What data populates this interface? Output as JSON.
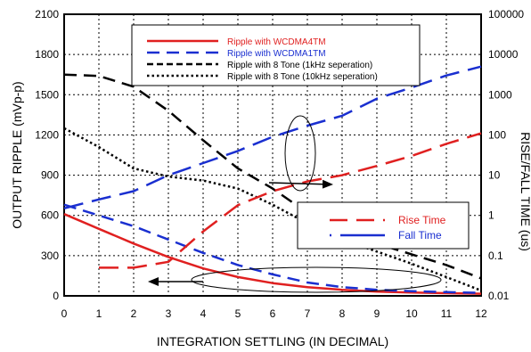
{
  "chart_data": {
    "type": "line",
    "title": "",
    "xlabel": "INTEGRATION SETTLING (IN DECIMAL)",
    "ylabel_left": "OUTPUT RIPPLE (mVp-p)",
    "ylabel_right": "RISE/FALL TIME (us)",
    "xlim": [
      0,
      12
    ],
    "ylim_left": [
      0,
      2100
    ],
    "ylim_right": [
      0.01,
      100000
    ],
    "right_scale": "log",
    "grid": true,
    "xticks": [
      "0",
      "1",
      "2",
      "3",
      "4",
      "5",
      "6",
      "7",
      "8",
      "9",
      "10",
      "11",
      "12"
    ],
    "yticks_left": [
      "0",
      "300",
      "600",
      "900",
      "1200",
      "1500",
      "1800",
      "2100"
    ],
    "yticks_right": [
      "0.01",
      "0.1",
      "1",
      "10",
      "100",
      "1000",
      "10000",
      "100000"
    ],
    "legend_left": {
      "placement": "top-center",
      "entries": [
        "Ripple with WCDMA4TM",
        "Ripple with WCDMA1TM",
        "Ripple with 8 Tone (1kHz seperation)",
        "Ripple with 8 Tone (10kHz seperation)"
      ]
    },
    "legend_right": {
      "placement": "center-right",
      "entries": [
        "Rise Time",
        "Fall Time"
      ]
    },
    "series": [
      {
        "name": "Ripple with WCDMA4TM",
        "axis": "left",
        "color": "#e02020",
        "style": "solid",
        "x": [
          0,
          1,
          2,
          3,
          4,
          5,
          6,
          7,
          8,
          9,
          10,
          11,
          12
        ],
        "y": [
          610,
          500,
          390,
          290,
          205,
          140,
          95,
          65,
          45,
          32,
          25,
          20,
          16
        ]
      },
      {
        "name": "Ripple with WCDMA1TM",
        "axis": "left",
        "color": "#1a2fd0",
        "style": "dashed",
        "x": [
          0,
          1,
          2,
          3,
          4,
          5,
          6,
          7,
          8,
          9,
          10,
          11,
          12
        ],
        "y": [
          680,
          600,
          520,
          420,
          320,
          230,
          160,
          100,
          65,
          45,
          35,
          28,
          22
        ]
      },
      {
        "name": "Ripple with 8 Tone (1kHz seperation)",
        "axis": "left",
        "color": "#000000",
        "style": "dashed",
        "x": [
          0,
          1,
          2,
          3,
          4,
          5,
          6,
          7,
          8,
          9,
          10,
          11,
          12
        ],
        "y": [
          1650,
          1640,
          1560,
          1380,
          1160,
          950,
          800,
          620,
          480,
          390,
          310,
          230,
          130
        ]
      },
      {
        "name": "Ripple with 8 Tone (10kHz seperation)",
        "axis": "left",
        "color": "#000000",
        "style": "dotted",
        "x": [
          0,
          1,
          2,
          3,
          4,
          5,
          6,
          7,
          8,
          9,
          10,
          11,
          12
        ],
        "y": [
          1250,
          1110,
          950,
          890,
          860,
          800,
          680,
          540,
          420,
          330,
          240,
          140,
          40
        ]
      },
      {
        "name": "Rise Time",
        "axis": "right",
        "color": "#e02020",
        "style": "longdash",
        "x": [
          1,
          2,
          3,
          4,
          5,
          6,
          7,
          8,
          9,
          10,
          11,
          12
        ],
        "y": [
          0.05,
          0.05,
          0.07,
          0.4,
          1.8,
          4,
          7,
          10,
          17,
          30,
          60,
          110
        ]
      },
      {
        "name": "Fall Time",
        "axis": "right",
        "color": "#1a2fd0",
        "style": "longdash",
        "x": [
          0,
          1,
          2,
          3,
          4,
          5,
          6,
          7,
          8,
          9,
          10,
          11,
          12
        ],
        "y": [
          1.5,
          2.5,
          4,
          10,
          20,
          40,
          90,
          170,
          300,
          800,
          1500,
          3000,
          5000
        ]
      }
    ]
  }
}
